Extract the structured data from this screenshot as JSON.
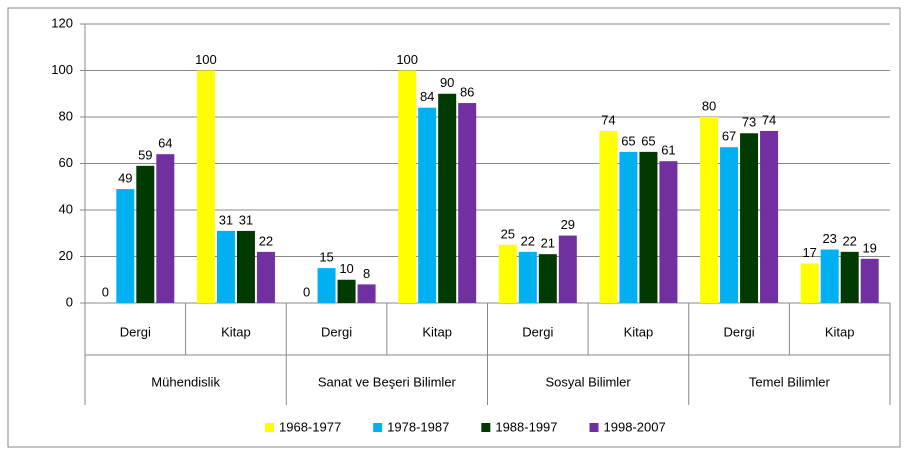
{
  "chart_data": {
    "type": "bar",
    "groups": [
      {
        "name": "Mühendislik",
        "categories": [
          "Dergi",
          "Kitap"
        ]
      },
      {
        "name": "Sanat ve Beşeri Bilimler",
        "categories": [
          "Dergi",
          "Kitap"
        ]
      },
      {
        "name": "Sosyal Bilimler",
        "categories": [
          "Dergi",
          "Kitap"
        ]
      },
      {
        "name": "Temel Bilimler",
        "categories": [
          "Dergi",
          "Kitap"
        ]
      }
    ],
    "series": [
      {
        "name": "1968-1977",
        "color": "#ffff00",
        "values": [
          0,
          100,
          0,
          100,
          25,
          74,
          80,
          17
        ]
      },
      {
        "name": "1978-1987",
        "color": "#00b0f0",
        "values": [
          49,
          31,
          15,
          84,
          22,
          65,
          67,
          23
        ]
      },
      {
        "name": "1988-1997",
        "color": "#003a00",
        "values": [
          59,
          31,
          10,
          90,
          21,
          65,
          73,
          22
        ]
      },
      {
        "name": "1998-2007",
        "color": "#7030a0",
        "values": [
          64,
          22,
          8,
          86,
          29,
          61,
          74,
          19
        ]
      }
    ],
    "ylim": [
      0,
      120
    ],
    "yticks": [
      0,
      20,
      40,
      60,
      80,
      100,
      120
    ],
    "grid": true,
    "legend": "bottom",
    "data_labels": true
  }
}
